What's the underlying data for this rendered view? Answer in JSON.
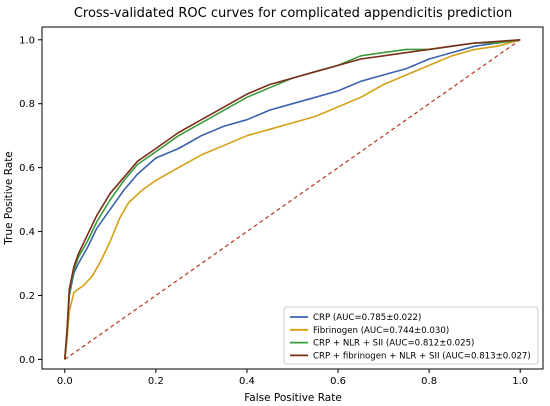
{
  "chart_data": {
    "type": "line",
    "title": "Cross-validated ROC curves for complicated appendicitis prediction",
    "xlabel": "False Positive Rate",
    "ylabel": "True Positive Rate",
    "xlim": [
      -0.05,
      1.05
    ],
    "ylim": [
      -0.03,
      1.04
    ],
    "xticks": [
      "0.0",
      "0.2",
      "0.4",
      "0.6",
      "0.8",
      "1.0"
    ],
    "yticks": [
      "0.0",
      "0.2",
      "0.4",
      "0.6",
      "0.8",
      "1.0"
    ],
    "grid": false,
    "legend_position": "lower-right",
    "diagonal": {
      "color": "#b5381f",
      "style": "dashed",
      "points": [
        [
          0,
          0
        ],
        [
          1,
          1
        ]
      ]
    },
    "series": [
      {
        "name": "CRP (AUC=0.785±0.022)",
        "color": "#3a63ad",
        "points": [
          [
            0,
            0
          ],
          [
            0.005,
            0.07
          ],
          [
            0.01,
            0.2
          ],
          [
            0.02,
            0.27
          ],
          [
            0.03,
            0.3
          ],
          [
            0.05,
            0.35
          ],
          [
            0.07,
            0.41
          ],
          [
            0.1,
            0.47
          ],
          [
            0.13,
            0.53
          ],
          [
            0.16,
            0.58
          ],
          [
            0.2,
            0.63
          ],
          [
            0.25,
            0.66
          ],
          [
            0.3,
            0.7
          ],
          [
            0.35,
            0.73
          ],
          [
            0.4,
            0.75
          ],
          [
            0.45,
            0.78
          ],
          [
            0.5,
            0.8
          ],
          [
            0.55,
            0.82
          ],
          [
            0.6,
            0.84
          ],
          [
            0.65,
            0.87
          ],
          [
            0.7,
            0.89
          ],
          [
            0.75,
            0.91
          ],
          [
            0.8,
            0.94
          ],
          [
            0.85,
            0.96
          ],
          [
            0.9,
            0.98
          ],
          [
            0.95,
            0.99
          ],
          [
            1,
            1
          ]
        ]
      },
      {
        "name": "Fibrinogen (AUC=0.744±0.030)",
        "color": "#d4a017",
        "points": [
          [
            0,
            0
          ],
          [
            0.005,
            0.06
          ],
          [
            0.01,
            0.15
          ],
          [
            0.02,
            0.21
          ],
          [
            0.04,
            0.23
          ],
          [
            0.06,
            0.26
          ],
          [
            0.08,
            0.31
          ],
          [
            0.1,
            0.37
          ],
          [
            0.12,
            0.44
          ],
          [
            0.14,
            0.49
          ],
          [
            0.17,
            0.53
          ],
          [
            0.2,
            0.56
          ],
          [
            0.25,
            0.6
          ],
          [
            0.3,
            0.64
          ],
          [
            0.35,
            0.67
          ],
          [
            0.4,
            0.7
          ],
          [
            0.45,
            0.72
          ],
          [
            0.5,
            0.74
          ],
          [
            0.55,
            0.76
          ],
          [
            0.6,
            0.79
          ],
          [
            0.65,
            0.82
          ],
          [
            0.7,
            0.86
          ],
          [
            0.75,
            0.89
          ],
          [
            0.8,
            0.92
          ],
          [
            0.85,
            0.95
          ],
          [
            0.9,
            0.97
          ],
          [
            0.95,
            0.98
          ],
          [
            1,
            1
          ]
        ]
      },
      {
        "name": "CRP + NLR + SII (AUC=0.812±0.025)",
        "color": "#3d9b3d",
        "points": [
          [
            0,
            0
          ],
          [
            0.005,
            0.08
          ],
          [
            0.01,
            0.21
          ],
          [
            0.02,
            0.28
          ],
          [
            0.03,
            0.32
          ],
          [
            0.05,
            0.37
          ],
          [
            0.07,
            0.43
          ],
          [
            0.1,
            0.5
          ],
          [
            0.13,
            0.56
          ],
          [
            0.16,
            0.61
          ],
          [
            0.2,
            0.65
          ],
          [
            0.25,
            0.7
          ],
          [
            0.3,
            0.74
          ],
          [
            0.35,
            0.78
          ],
          [
            0.4,
            0.82
          ],
          [
            0.45,
            0.85
          ],
          [
            0.5,
            0.88
          ],
          [
            0.55,
            0.9
          ],
          [
            0.6,
            0.92
          ],
          [
            0.65,
            0.95
          ],
          [
            0.7,
            0.96
          ],
          [
            0.75,
            0.97
          ],
          [
            0.8,
            0.97
          ],
          [
            0.85,
            0.98
          ],
          [
            0.9,
            0.99
          ],
          [
            0.95,
            0.99
          ],
          [
            1,
            1
          ]
        ]
      },
      {
        "name": "CRP + fibrinogen + NLR + SII (AUC=0.813±0.027)",
        "color": "#7b2e1a",
        "points": [
          [
            0,
            0
          ],
          [
            0.005,
            0.09
          ],
          [
            0.01,
            0.22
          ],
          [
            0.02,
            0.29
          ],
          [
            0.03,
            0.33
          ],
          [
            0.05,
            0.39
          ],
          [
            0.07,
            0.45
          ],
          [
            0.1,
            0.52
          ],
          [
            0.13,
            0.57
          ],
          [
            0.16,
            0.62
          ],
          [
            0.2,
            0.66
          ],
          [
            0.25,
            0.71
          ],
          [
            0.3,
            0.75
          ],
          [
            0.35,
            0.79
          ],
          [
            0.4,
            0.83
          ],
          [
            0.45,
            0.86
          ],
          [
            0.5,
            0.88
          ],
          [
            0.55,
            0.9
          ],
          [
            0.6,
            0.92
          ],
          [
            0.65,
            0.94
          ],
          [
            0.7,
            0.95
          ],
          [
            0.75,
            0.96
          ],
          [
            0.8,
            0.97
          ],
          [
            0.85,
            0.98
          ],
          [
            0.9,
            0.99
          ],
          [
            0.95,
            0.995
          ],
          [
            1,
            1
          ]
        ]
      }
    ]
  }
}
